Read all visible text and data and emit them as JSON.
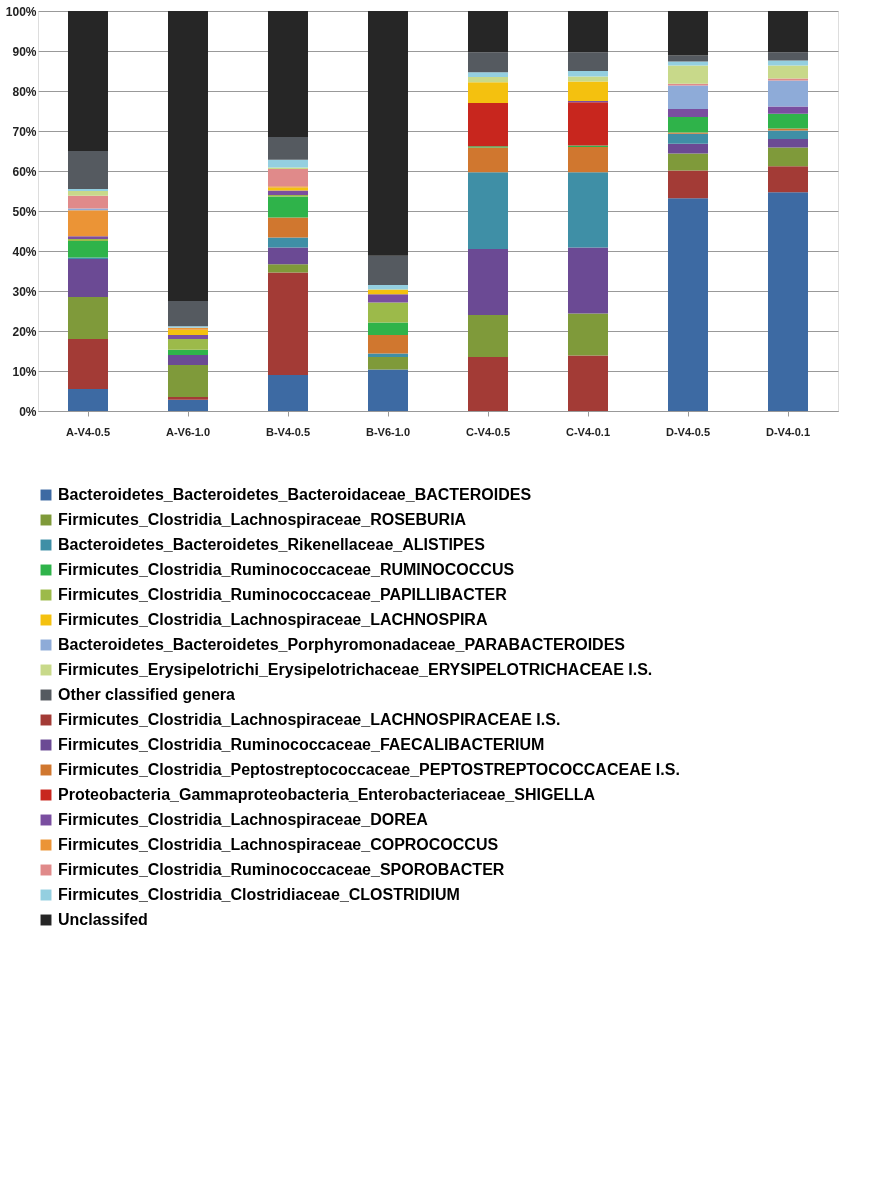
{
  "chart_data": {
    "type": "bar",
    "stacked": true,
    "categories": [
      "A-V4-0.5",
      "A-V6-1.0",
      "B-V4-0.5",
      "B-V6-1.0",
      "C-V4-0.5",
      "C-V4-0.1",
      "D-V4-0.5",
      "D-V4-0.1"
    ],
    "ylim": [
      0,
      100
    ],
    "yticks": [
      {
        "value": 0,
        "label": "0%"
      },
      {
        "value": 10,
        "label": "10%"
      },
      {
        "value": 20,
        "label": "20%"
      },
      {
        "value": 30,
        "label": "30%"
      },
      {
        "value": 40,
        "label": "40%"
      },
      {
        "value": 50,
        "label": "50%"
      },
      {
        "value": 60,
        "label": "60%"
      },
      {
        "value": 70,
        "label": "70%"
      },
      {
        "value": 80,
        "label": "80%"
      },
      {
        "value": 90,
        "label": "90%"
      },
      {
        "value": 100,
        "label": "100%"
      }
    ],
    "grid": "y",
    "legend": "bottom",
    "series": [
      {
        "name": "Bacteroidetes_Bacteroidetes_Bacteroidaceae_BACTEROIDES",
        "color": "#3d6aa3",
        "values": [
          5.5,
          2.8,
          9.0,
          10.4,
          0,
          0,
          53.2,
          54.7
        ]
      },
      {
        "name": "Firmicutes_Clostridia_Lachnospiraceae_LACHNOSPIRACEAE I.S.",
        "color": "#a33b36",
        "values": [
          12.5,
          0.7,
          25.6,
          0,
          13.5,
          13.9,
          6.9,
          6.5
        ]
      },
      {
        "name": "Firmicutes_Clostridia_Lachnospiraceae_ROSEBURIA",
        "color": "#7f9a3a",
        "values": [
          10.5,
          8.0,
          2.1,
          3.1,
          10.5,
          10.5,
          4.3,
          4.7
        ]
      },
      {
        "name": "Firmicutes_Clostridia_Ruminococcaceae_FAECALIBACTERIUM",
        "color": "#6b4a94",
        "values": [
          9.5,
          2.5,
          4.2,
          0,
          16.5,
          16.5,
          2.4,
          2.1
        ]
      },
      {
        "name": "Bacteroidetes_Bacteroidetes_Rikenellaceae_ALISTIPES",
        "color": "#3f8fa6",
        "values": [
          0.4,
          0,
          2.5,
          0.9,
          19.2,
          18.8,
          2.5,
          2.1
        ]
      },
      {
        "name": "Firmicutes_Clostridia_Peptostreptococcaceae_PEPTOSTREPTOCOCCACEAE I.S.",
        "color": "#d0772f",
        "values": [
          0,
          0,
          5.0,
          4.6,
          6.2,
          6.3,
          0.3,
          0.5
        ]
      },
      {
        "name": "Firmicutes_Clostridia_Ruminococcaceae_RUMINOCOCCUS",
        "color": "#2fb34a",
        "values": [
          4.1,
          1.3,
          5.2,
          3.1,
          0.3,
          0.4,
          3.9,
          3.7
        ]
      },
      {
        "name": "Proteobacteria_Gammaproteobacteria_Enterobacteriaceae_SHIGELLA",
        "color": "#c8261e",
        "values": [
          0,
          0,
          0,
          0,
          10.8,
          10.8,
          0,
          0
        ]
      },
      {
        "name": "Firmicutes_Clostridia_Ruminococcaceae_PAPILLIBACTER",
        "color": "#9cba4a",
        "values": [
          0.5,
          2.7,
          0.4,
          5.0,
          0,
          0,
          0,
          0
        ]
      },
      {
        "name": "Firmicutes_Clostridia_Lachnospiraceae_DOREA",
        "color": "#7a4ea0",
        "values": [
          0.7,
          1.0,
          1.1,
          2.1,
          0,
          0.3,
          2.0,
          1.8
        ]
      },
      {
        "name": "Firmicutes_Clostridia_Lachnospiraceae_LACHNOSPIRA",
        "color": "#f4c10f",
        "values": [
          0,
          1.3,
          0.8,
          1.2,
          5.2,
          4.9,
          0,
          0
        ]
      },
      {
        "name": "Firmicutes_Clostridia_Lachnospiraceae_COPROCOCCUS",
        "color": "#eb9436",
        "values": [
          6.5,
          0.5,
          0.3,
          0,
          0,
          0,
          0,
          0
        ]
      },
      {
        "name": "Bacteroidetes_Bacteroidetes_Porphyromonadaceae_PARABACTEROIDES",
        "color": "#8eabd8",
        "values": [
          0.4,
          0,
          0,
          0,
          0,
          0,
          5.9,
          6.5
        ]
      },
      {
        "name": "Firmicutes_Clostridia_Ruminococcaceae_SPOROBACTER",
        "color": "#e08a8a",
        "values": [
          3.2,
          0,
          4.3,
          0,
          0,
          0,
          0.4,
          0.5
        ]
      },
      {
        "name": "Firmicutes_Erysipelotrichi_Erysipelotrichaceae_ERYSIPELOTRICHACEAE I.S.",
        "color": "#c8d98a",
        "values": [
          1.2,
          0,
          0.4,
          0,
          1.3,
          1.2,
          4.6,
          3.3
        ]
      },
      {
        "name": "Firmicutes_Clostridia_Clostridiaceae_CLOSTRIDIUM",
        "color": "#94cfe0",
        "values": [
          0.5,
          0.4,
          1.9,
          1.1,
          1.2,
          1.4,
          1.0,
          1.2
        ]
      },
      {
        "name": "Other classified genera",
        "color": "#555a60",
        "values": [
          9.5,
          6.3,
          5.7,
          7.3,
          5.0,
          4.7,
          1.5,
          2.1
        ]
      },
      {
        "name": "Unclassifed",
        "color": "#262626",
        "values": [
          35,
          72.5,
          31.5,
          61.2,
          10.3,
          10.3,
          11.1,
          10.3
        ]
      }
    ]
  }
}
